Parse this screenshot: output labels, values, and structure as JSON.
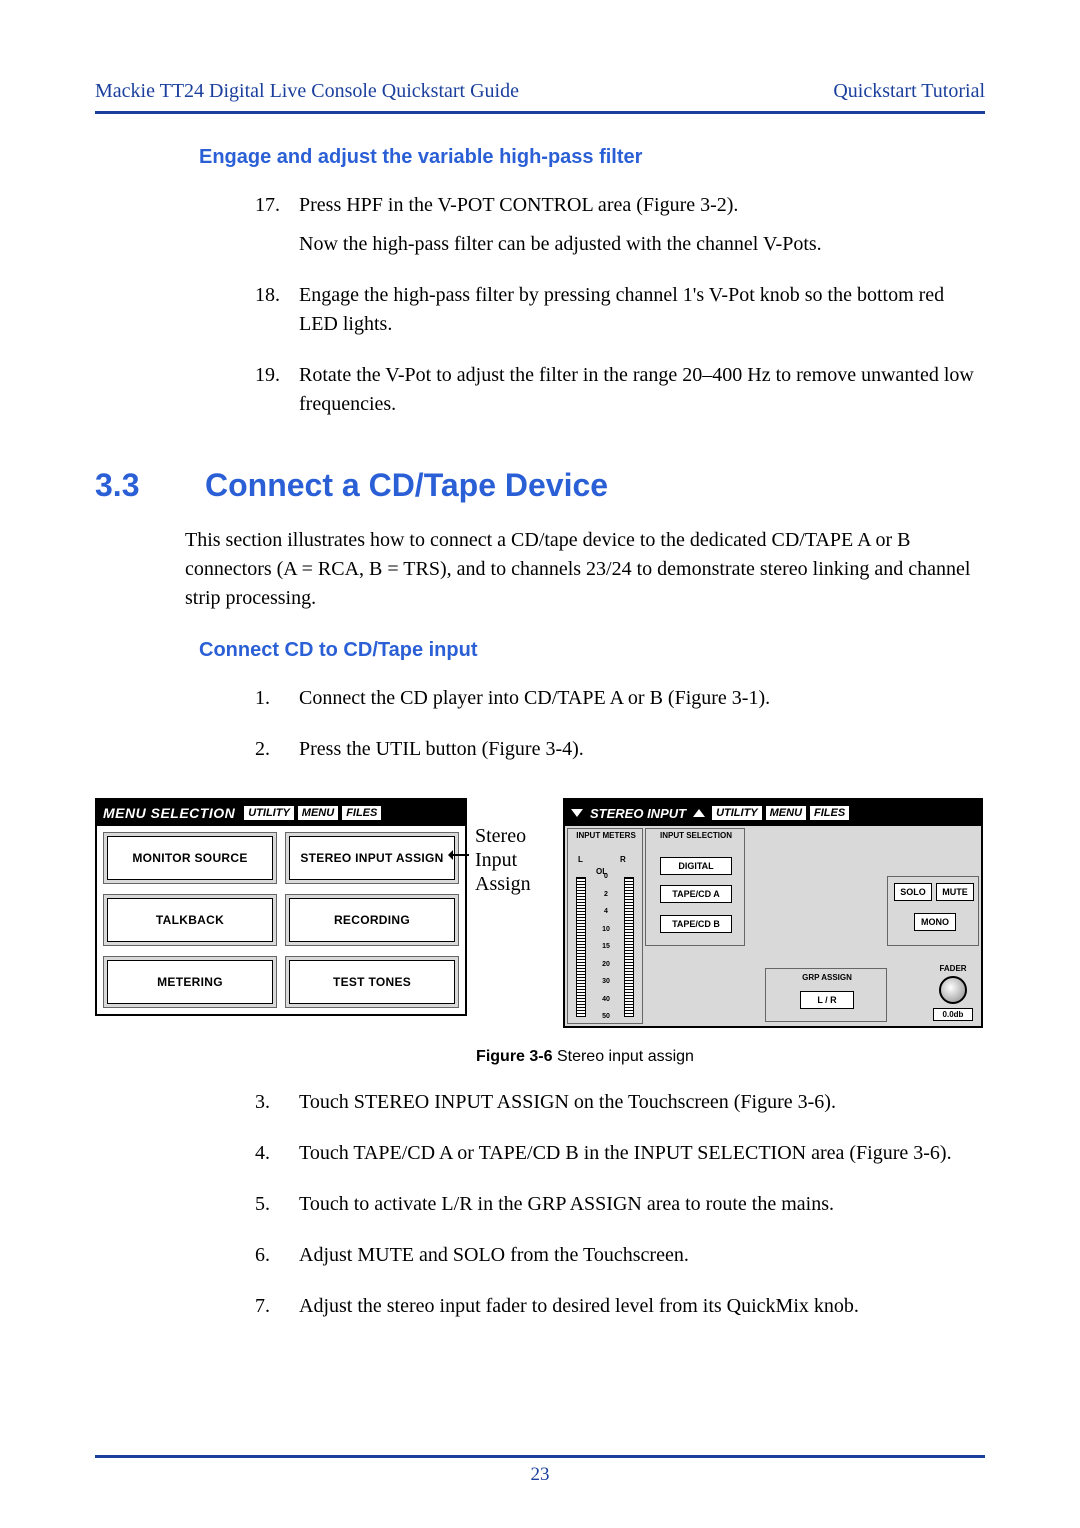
{
  "header": {
    "left": "Mackie TT24 Digital  Live Console Quickstart Guide",
    "right": "Quickstart Tutorial"
  },
  "sect_a": {
    "heading": "Engage and adjust the variable high-pass filter",
    "items": [
      {
        "n": "17.",
        "paras": [
          "Press HPF in the V-POT CONTROL area (Figure 3-2).",
          "Now the high-pass filter can be adjusted with the channel V-Pots."
        ]
      },
      {
        "n": "18.",
        "paras": [
          "Engage the high-pass filter by pressing channel 1's V-Pot knob so the bottom red LED lights."
        ]
      },
      {
        "n": "19.",
        "paras": [
          "Rotate the V-Pot to adjust the filter in the range 20–400 Hz to remove unwanted low frequencies."
        ]
      }
    ]
  },
  "section": {
    "num": "3.3",
    "title": "Connect a CD/Tape Device",
    "intro": "This section illustrates how to connect a CD/tape device to the dedicated CD/TAPE A or B connectors (A = RCA, B = TRS), and to channels 23/24 to demonstrate stereo linking and channel strip processing."
  },
  "sect_b": {
    "heading": "Connect CD to CD/Tape input",
    "items_top": [
      {
        "n": "1.",
        "text": "Connect the CD player into CD/TAPE A or B (Figure 3-1)."
      },
      {
        "n": "2.",
        "text": "Press the UTIL button (Figure 3-4)."
      }
    ],
    "items_bot": [
      {
        "n": "3.",
        "text": "Touch STEREO INPUT ASSIGN on the Touchscreen (Figure 3-6)."
      },
      {
        "n": "4.",
        "text": "Touch TAPE/CD A or TAPE/CD B in the INPUT SELECTION area (Figure 3-6)."
      },
      {
        "n": "5.",
        "text": "Touch to activate L/R in the GRP ASSIGN area to route the mains."
      },
      {
        "n": "6.",
        "text": "Adjust MUTE and SOLO from the Touchscreen."
      },
      {
        "n": "7.",
        "text": "Adjust the stereo input fader to desired level from its QuickMix knob."
      }
    ]
  },
  "figure": {
    "annotation": "Stereo Input Assign",
    "caption_bold": "Figure 3-6",
    "caption_rest": " Stereo input assign",
    "panelA": {
      "tab_title": "MENU SELECTION",
      "tabs": [
        "UTILITY",
        "MENU",
        "FILES"
      ],
      "buttons": [
        "MONITOR SOURCE",
        "STEREO INPUT ASSIGN",
        "TALKBACK",
        "RECORDING",
        "METERING",
        "TEST TONES"
      ]
    },
    "panelB": {
      "tab_title": "STEREO INPUT",
      "tabs": [
        "UTILITY",
        "MENU",
        "FILES"
      ],
      "labels": {
        "input_meters": "INPUT METERS",
        "input_selection": "INPUT SELECTION",
        "L": "L",
        "R": "R",
        "OL": "OL",
        "digital": "DIGITAL",
        "tapecd_a": "TAPE/CD A",
        "tapecd_b": "TAPE/CD B",
        "solo": "SOLO",
        "mute": "MUTE",
        "mono": "MONO",
        "grp_assign": "GRP ASSIGN",
        "lr": "L / R",
        "fader": "FADER",
        "fader_val": "0.0db"
      },
      "meter_ticks": [
        "0",
        "2",
        "4",
        "10",
        "15",
        "20",
        "30",
        "40",
        "50"
      ]
    }
  },
  "pagenum": "23",
  "colors": {
    "accent": "#1a3f9c",
    "heading": "#2a5fd6",
    "panel_grey": "#d9d9d9"
  }
}
